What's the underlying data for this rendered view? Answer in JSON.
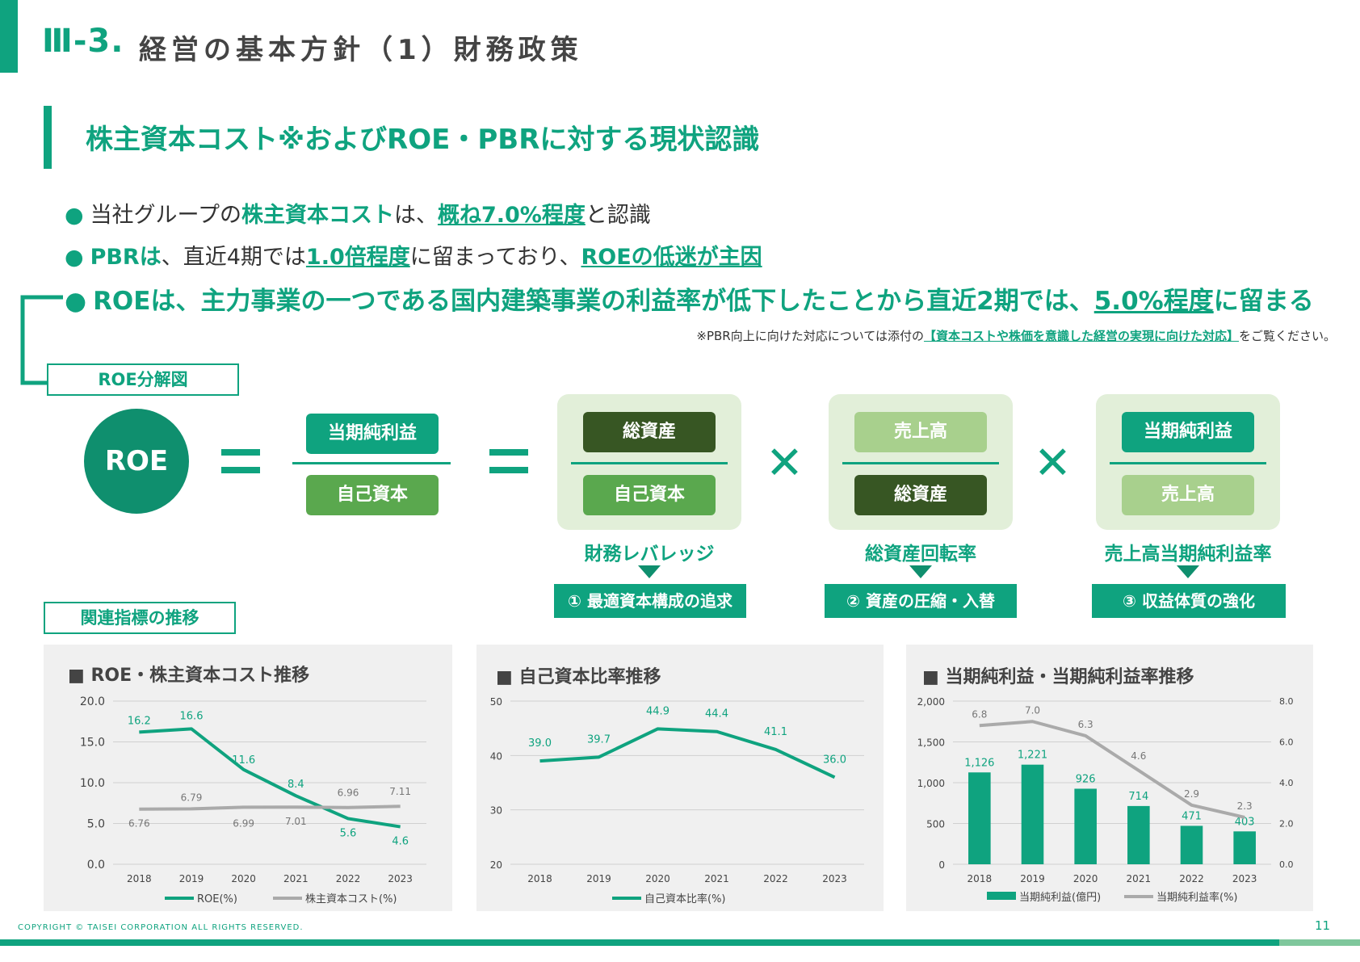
{
  "header": {
    "number": "Ⅲ-3.",
    "title": "経営の基本方針（1）財務政策"
  },
  "section": {
    "title": "株主資本コスト※およびROE・PBRに対する現状認識"
  },
  "bullets": {
    "b1": {
      "pre": "当社グループの",
      "hl1": "株主資本コスト",
      "mid": "は、",
      "hl2": "概ね7.0%程度",
      "post": "と認識"
    },
    "b2": {
      "hl0": "PBRは",
      "pre": "、直近4期では",
      "hl1": "1.0倍程度",
      "mid": "に留まっており、",
      "hl2": "ROEの低迷が主因"
    },
    "b3": {
      "pre": "ROEは、主力事業の一つである国内建築事業の利益率が低下したことから直近2期では、",
      "hl": "5.0%程度",
      "post": "に留まる"
    }
  },
  "note": {
    "pre": "※PBR向上に向けた対応については添付の",
    "link": "【資本コストや株価を意識した経営の実現に向けた対応】",
    "post": "をご覧ください。"
  },
  "roe_box_label": "ROE分解図",
  "roe_circle": "ROE",
  "formula": {
    "f0": {
      "num": "当期純利益",
      "den": "自己資本"
    },
    "f1": {
      "num": "総資産",
      "den": "自己資本",
      "label": "財務レバレッジ",
      "action": "① 最適資本構成の追求"
    },
    "f2": {
      "num": "売上高",
      "den": "総資産",
      "label": "総資産回転率",
      "action": "② 資産の圧縮・入替"
    },
    "f3": {
      "num": "当期純利益",
      "den": "売上高",
      "label": "売上高当期純利益率",
      "action": "③ 収益体質の強化"
    }
  },
  "colors": {
    "accent": "#0fa37f",
    "dark_green": "#0f8f6e",
    "mid_green": "#5aa84e",
    "light_green": "#a8d08d",
    "darkest_green": "#375623",
    "panel": "#e2efd9",
    "gray_line": "#aaaaaa"
  },
  "indicator_box_label": "関連指標の推移",
  "chart_data": [
    {
      "type": "line",
      "title": "■ ROE・株主資本コスト推移",
      "categories": [
        "2018",
        "2019",
        "2020",
        "2021",
        "2022",
        "2023"
      ],
      "ylim": [
        0,
        20
      ],
      "yticks": [
        "0.0",
        "5.0",
        "10.0",
        "15.0",
        "20.0"
      ],
      "grid": true,
      "legend": "bottom",
      "series": [
        {
          "name": "ROE(%)",
          "values": [
            16.2,
            16.6,
            11.6,
            8.4,
            5.6,
            4.6
          ],
          "labels": [
            "16.2",
            "16.6",
            "11.6",
            "8.4",
            "5.6",
            "4.6"
          ]
        },
        {
          "name": "株主資本コスト(%)",
          "values": [
            6.76,
            6.79,
            6.99,
            7.01,
            6.96,
            7.11
          ],
          "labels": [
            "6.76",
            "6.79",
            "6.99",
            "7.01",
            "6.96",
            "7.11"
          ]
        }
      ]
    },
    {
      "type": "line",
      "title": "■ 自己資本比率推移",
      "categories": [
        "2018",
        "2019",
        "2020",
        "2021",
        "2022",
        "2023"
      ],
      "ylim": [
        20,
        50
      ],
      "yticks": [
        "20",
        "30",
        "40",
        "50"
      ],
      "grid": true,
      "legend": "bottom",
      "series": [
        {
          "name": "自己資本比率(%)",
          "values": [
            39.0,
            39.7,
            44.9,
            44.4,
            41.1,
            36.0
          ],
          "labels": [
            "39.0",
            "39.7",
            "44.9",
            "44.4",
            "41.1",
            "36.0"
          ]
        }
      ]
    },
    {
      "type": "bar",
      "title": "■ 当期純利益・当期純利益率推移",
      "categories": [
        "2018",
        "2019",
        "2020",
        "2021",
        "2022",
        "2023"
      ],
      "ylim": [
        0,
        2000
      ],
      "yticks": [
        "0",
        "500",
        "1,000",
        "1,500",
        "2,000"
      ],
      "y2lim": [
        0,
        8
      ],
      "y2ticks": [
        "0.0",
        "2.0",
        "4.0",
        "6.0",
        "8.0"
      ],
      "grid": true,
      "legend": "bottom",
      "series": [
        {
          "name": "当期純利益(億円)",
          "type": "bar",
          "values": [
            1126,
            1221,
            926,
            714,
            471,
            403
          ],
          "labels": [
            "1,126",
            "1,221",
            "926",
            "714",
            "471",
            "403"
          ]
        },
        {
          "name": "当期純利益率(%)",
          "type": "line",
          "axis": "right",
          "values": [
            6.8,
            7.0,
            6.3,
            4.6,
            2.9,
            2.3
          ],
          "labels": [
            "6.8",
            "7.0",
            "6.3",
            "4.6",
            "2.9",
            "2.3"
          ]
        }
      ]
    }
  ],
  "footer": {
    "copyright": "COPYRIGHT © TAISEI CORPORATION ALL RIGHTS RESERVED.",
    "page": "11"
  }
}
